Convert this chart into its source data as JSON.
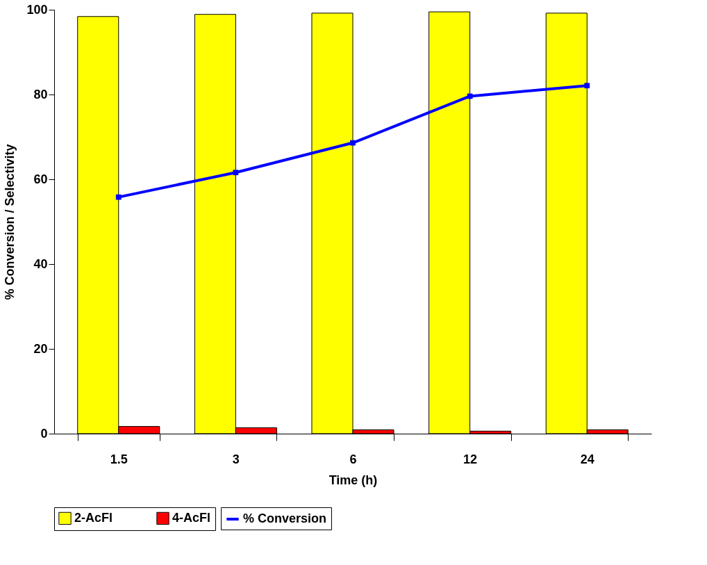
{
  "chart_data": {
    "type": "bar",
    "xlabel": "Time (h)",
    "ylabel": "% Conversion / Selectivity",
    "categories": [
      "1.5",
      "3",
      "6",
      "12",
      "24"
    ],
    "series": [
      {
        "name": "2-AcFl",
        "color": "#ffff00",
        "values": [
          98.4,
          98.9,
          99.2,
          99.5,
          99.2
        ]
      },
      {
        "name": "4-AcFl",
        "color": "#ff0000",
        "values": [
          1.7,
          1.4,
          0.9,
          0.6,
          0.9
        ]
      },
      {
        "name": "% Conversion",
        "type": "line",
        "color": "#0000ff",
        "marker": "square",
        "values": [
          55.8,
          61.6,
          68.6,
          79.6,
          82.1
        ]
      }
    ],
    "ylim": [
      0,
      100
    ],
    "yticks": [
      0,
      20,
      40,
      60,
      80,
      100
    ],
    "grid": false,
    "legend": "bottom"
  }
}
